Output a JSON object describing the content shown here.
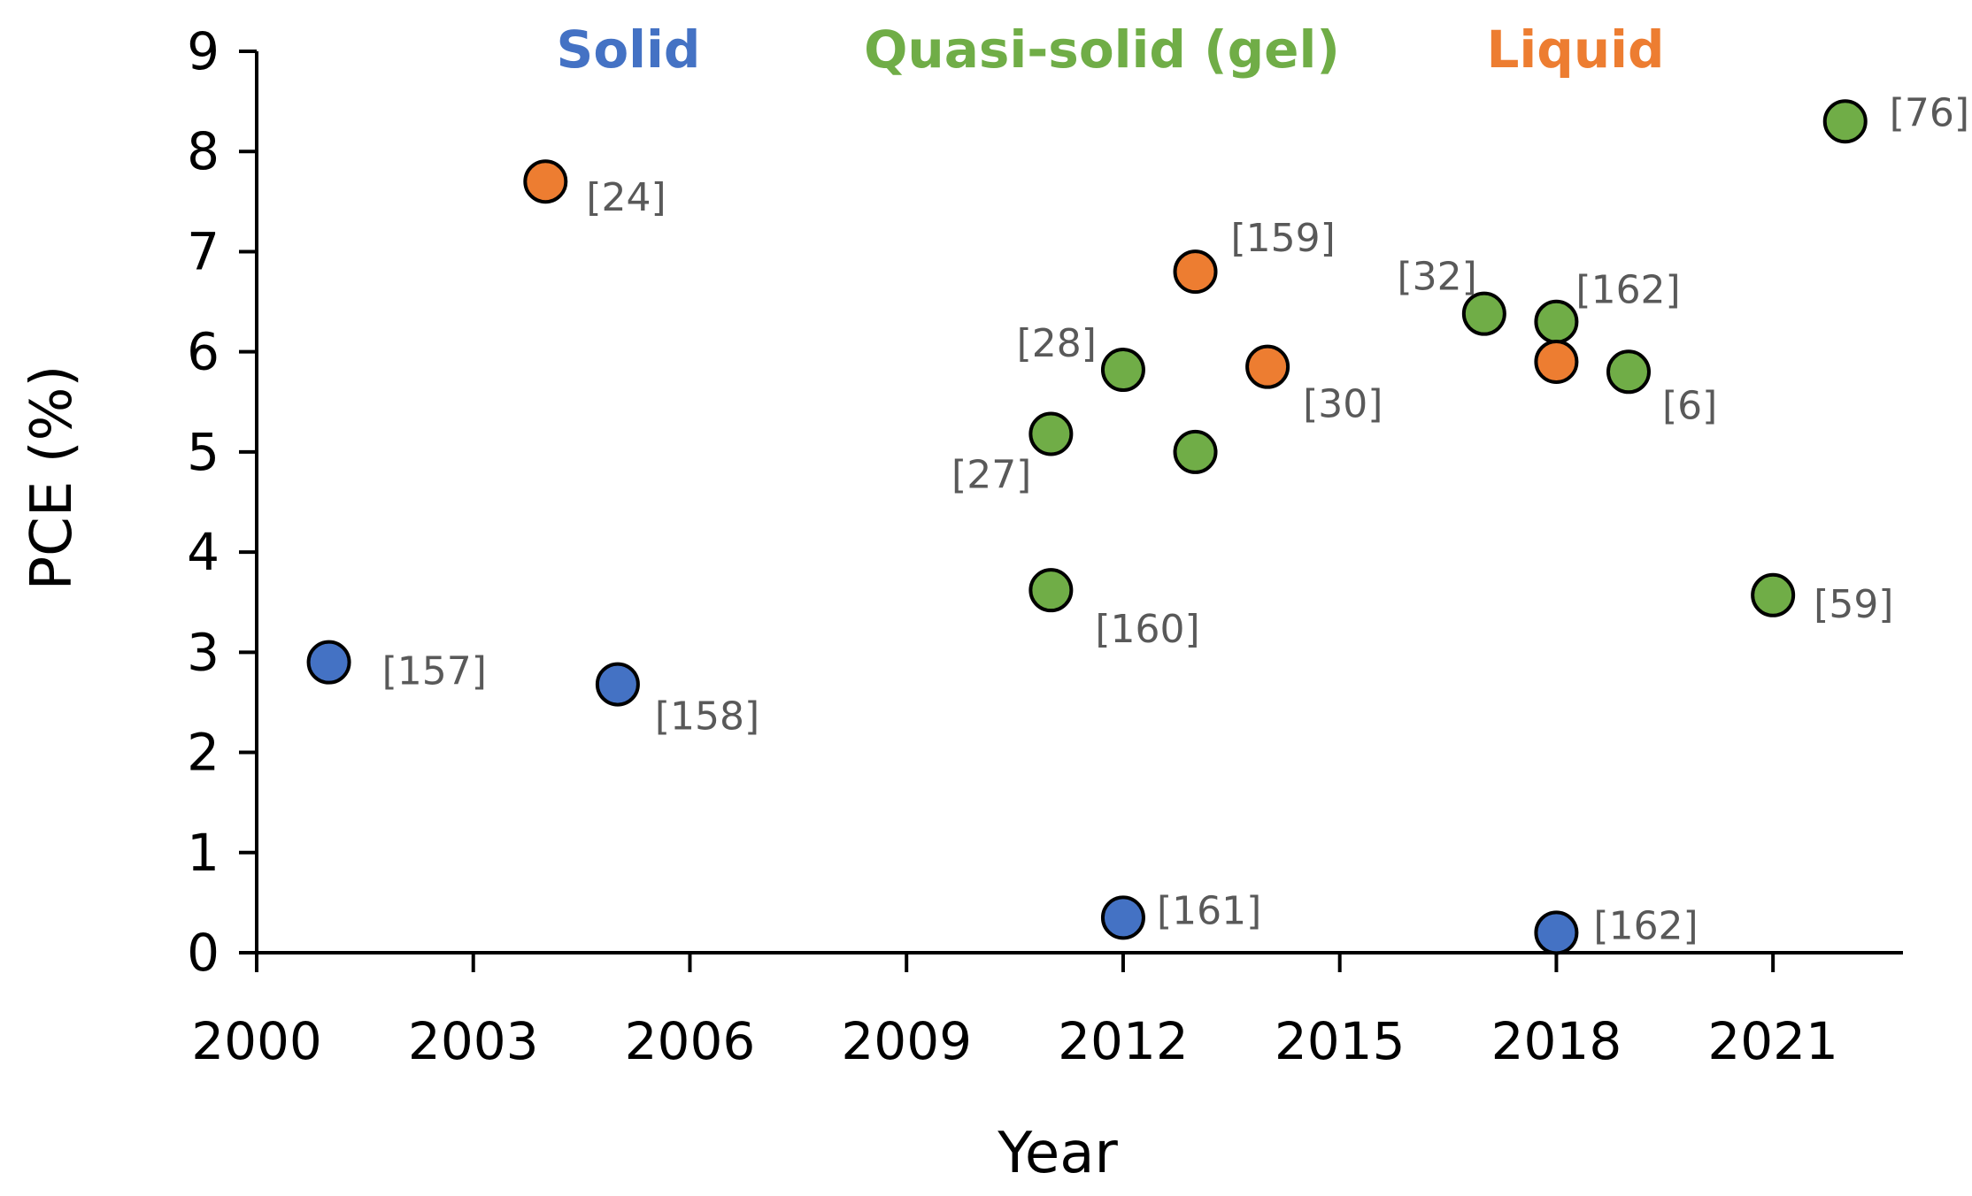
{
  "chart_data": {
    "type": "scatter",
    "title": "",
    "xlabel": "Year",
    "ylabel": "PCE (%)",
    "xlim": [
      2000,
      2022.8
    ],
    "ylim": [
      0,
      9
    ],
    "x_ticks": [
      2000,
      2003,
      2006,
      2009,
      2012,
      2015,
      2018,
      2021
    ],
    "y_ticks": [
      0,
      1,
      2,
      3,
      4,
      5,
      6,
      7,
      8,
      9
    ],
    "grid": false,
    "legend_position": "top",
    "series": [
      {
        "name": "Solid",
        "color": "#4472C4",
        "points": [
          {
            "x": 2001,
            "y": 2.9,
            "label": "[157]"
          },
          {
            "x": 2005,
            "y": 2.68,
            "label": "[158]"
          },
          {
            "x": 2012,
            "y": 0.35,
            "label": "[161]"
          },
          {
            "x": 2018,
            "y": 0.2,
            "label": "[162]"
          }
        ]
      },
      {
        "name": "Quasi-solid (gel)",
        "color": "#70AD47",
        "points": [
          {
            "x": 2011,
            "y": 5.18,
            "label": "[27]"
          },
          {
            "x": 2011,
            "y": 3.62,
            "label": "[160]"
          },
          {
            "x": 2012,
            "y": 5.82,
            "label": "[28]"
          },
          {
            "x": 2013,
            "y": 5.0,
            "label": ""
          },
          {
            "x": 2017,
            "y": 6.38,
            "label": "[32]"
          },
          {
            "x": 2018,
            "y": 6.3,
            "label": "[162]"
          },
          {
            "x": 2019,
            "y": 5.8,
            "label": "[6]"
          },
          {
            "x": 2021,
            "y": 3.57,
            "label": "[59]"
          },
          {
            "x": 2022,
            "y": 8.3,
            "label": "[76]"
          }
        ]
      },
      {
        "name": "Liquid",
        "color": "#ED7D31",
        "points": [
          {
            "x": 2004,
            "y": 7.7,
            "label": "[24]"
          },
          {
            "x": 2013,
            "y": 6.8,
            "label": "[159]"
          },
          {
            "x": 2014,
            "y": 5.85,
            "label": "[30]"
          },
          {
            "x": 2018,
            "y": 5.9,
            "label": ""
          }
        ]
      }
    ]
  }
}
